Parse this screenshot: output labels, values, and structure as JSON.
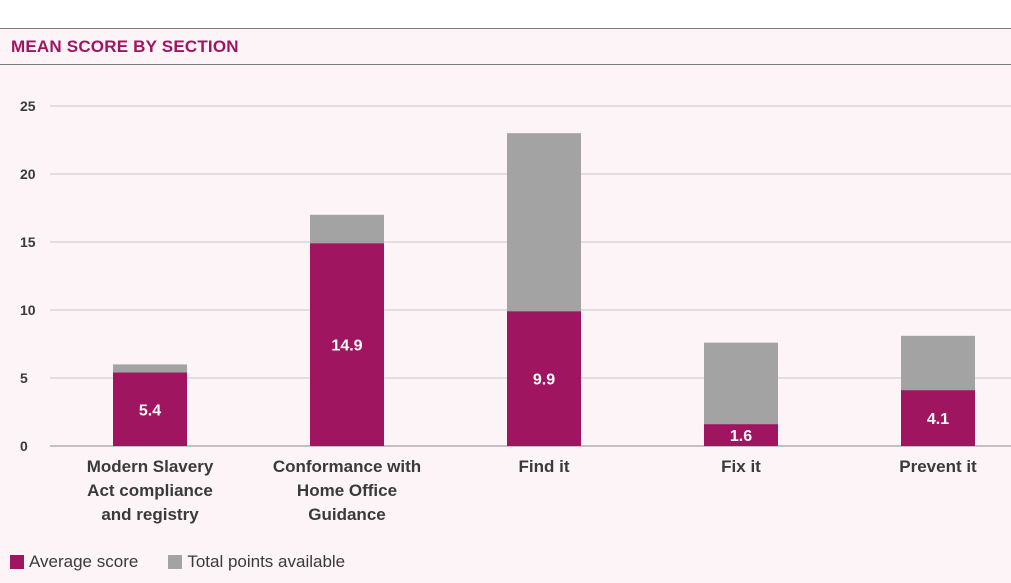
{
  "colors": {
    "accent": "#a0155f",
    "total": "#a3a3a3",
    "grid": "#c9c9c9"
  },
  "chart_data": {
    "type": "bar",
    "title": "MEAN SCORE BY SECTION",
    "xlabel": "",
    "ylabel": "",
    "ylim": [
      0,
      25
    ],
    "yticks": [
      "0",
      "5",
      "10",
      "15",
      "20",
      "25"
    ],
    "grid": true,
    "legend_position": "bottom-left",
    "categories": [
      [
        "Modern Slavery",
        "Act compliance",
        "and registry"
      ],
      [
        "Conformance with",
        "Home Office",
        "Guidance"
      ],
      [
        "Find it"
      ],
      [
        "Fix it"
      ],
      [
        "Prevent it"
      ]
    ],
    "series": [
      {
        "name": "Average score",
        "values": [
          5.4,
          14.9,
          9.9,
          1.6,
          4.1
        ],
        "labels": [
          "5.4",
          "14.9",
          "9.9",
          "1.6",
          "4.1"
        ]
      },
      {
        "name": "Total points available",
        "values": [
          6,
          17,
          23,
          7.6,
          8.1
        ]
      }
    ]
  }
}
